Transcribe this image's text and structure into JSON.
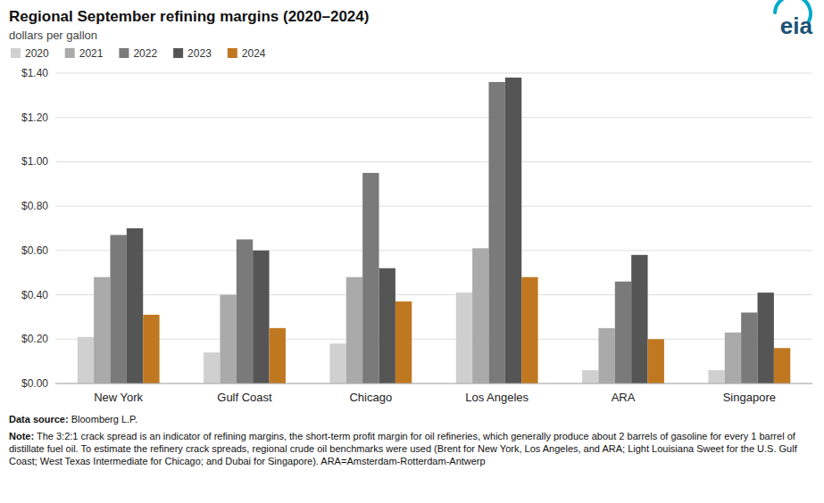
{
  "chart_data": {
    "type": "bar",
    "title": "Regional September refining margins (2020–2024)",
    "subtitle": "dollars per gallon",
    "categories": [
      "New York",
      "Gulf Coast",
      "Chicago",
      "Los Angeles",
      "ARA",
      "Singapore"
    ],
    "series": [
      {
        "name": "2020",
        "color": "#d0d0d0",
        "values": [
          0.21,
          0.14,
          0.18,
          0.41,
          0.06,
          0.06
        ]
      },
      {
        "name": "2021",
        "color": "#aaaaaa",
        "values": [
          0.48,
          0.4,
          0.48,
          0.61,
          0.25,
          0.23
        ]
      },
      {
        "name": "2022",
        "color": "#7a7a7a",
        "values": [
          0.67,
          0.65,
          0.95,
          1.36,
          0.46,
          0.32
        ]
      },
      {
        "name": "2023",
        "color": "#555555",
        "values": [
          0.7,
          0.6,
          0.52,
          1.38,
          0.58,
          0.41
        ]
      },
      {
        "name": "2024",
        "color": "#c07820",
        "values": [
          0.31,
          0.25,
          0.37,
          0.48,
          0.2,
          0.16
        ]
      }
    ],
    "ylim": [
      0,
      1.4
    ],
    "yticks": [
      {
        "value": 0.0,
        "label": "$0.00"
      },
      {
        "value": 0.2,
        "label": "$0.20"
      },
      {
        "value": 0.4,
        "label": "$0.40"
      },
      {
        "value": 0.6,
        "label": "$0.60"
      },
      {
        "value": 0.8,
        "label": "$0.80"
      },
      {
        "value": 1.0,
        "label": "$1.00"
      },
      {
        "value": 1.2,
        "label": "$1.20"
      },
      {
        "value": 1.4,
        "label": "$1.40"
      }
    ],
    "grid": true,
    "legend": "top",
    "annotations": [
      "eia",
      "Data source: Bloomberg L.P.",
      "Note: The 3:2:1 crack spread is an indicator of refining margins, the short-term profit margin for oil refineries, which generally produce about 2 barrels of gasoline for every 1 barrel of distillate fuel oil. To estimate the refinery crack spreads, regional crude oil benchmarks were used (Brent for New York, Los Angeles, and ARA; Light Louisiana Sweet for the U.S. Gulf Coast; West Texas Intermediate for Chicago; and Dubai for Singapore). ARA=Amsterdam-Rotterdam-Antwerp"
    ]
  }
}
